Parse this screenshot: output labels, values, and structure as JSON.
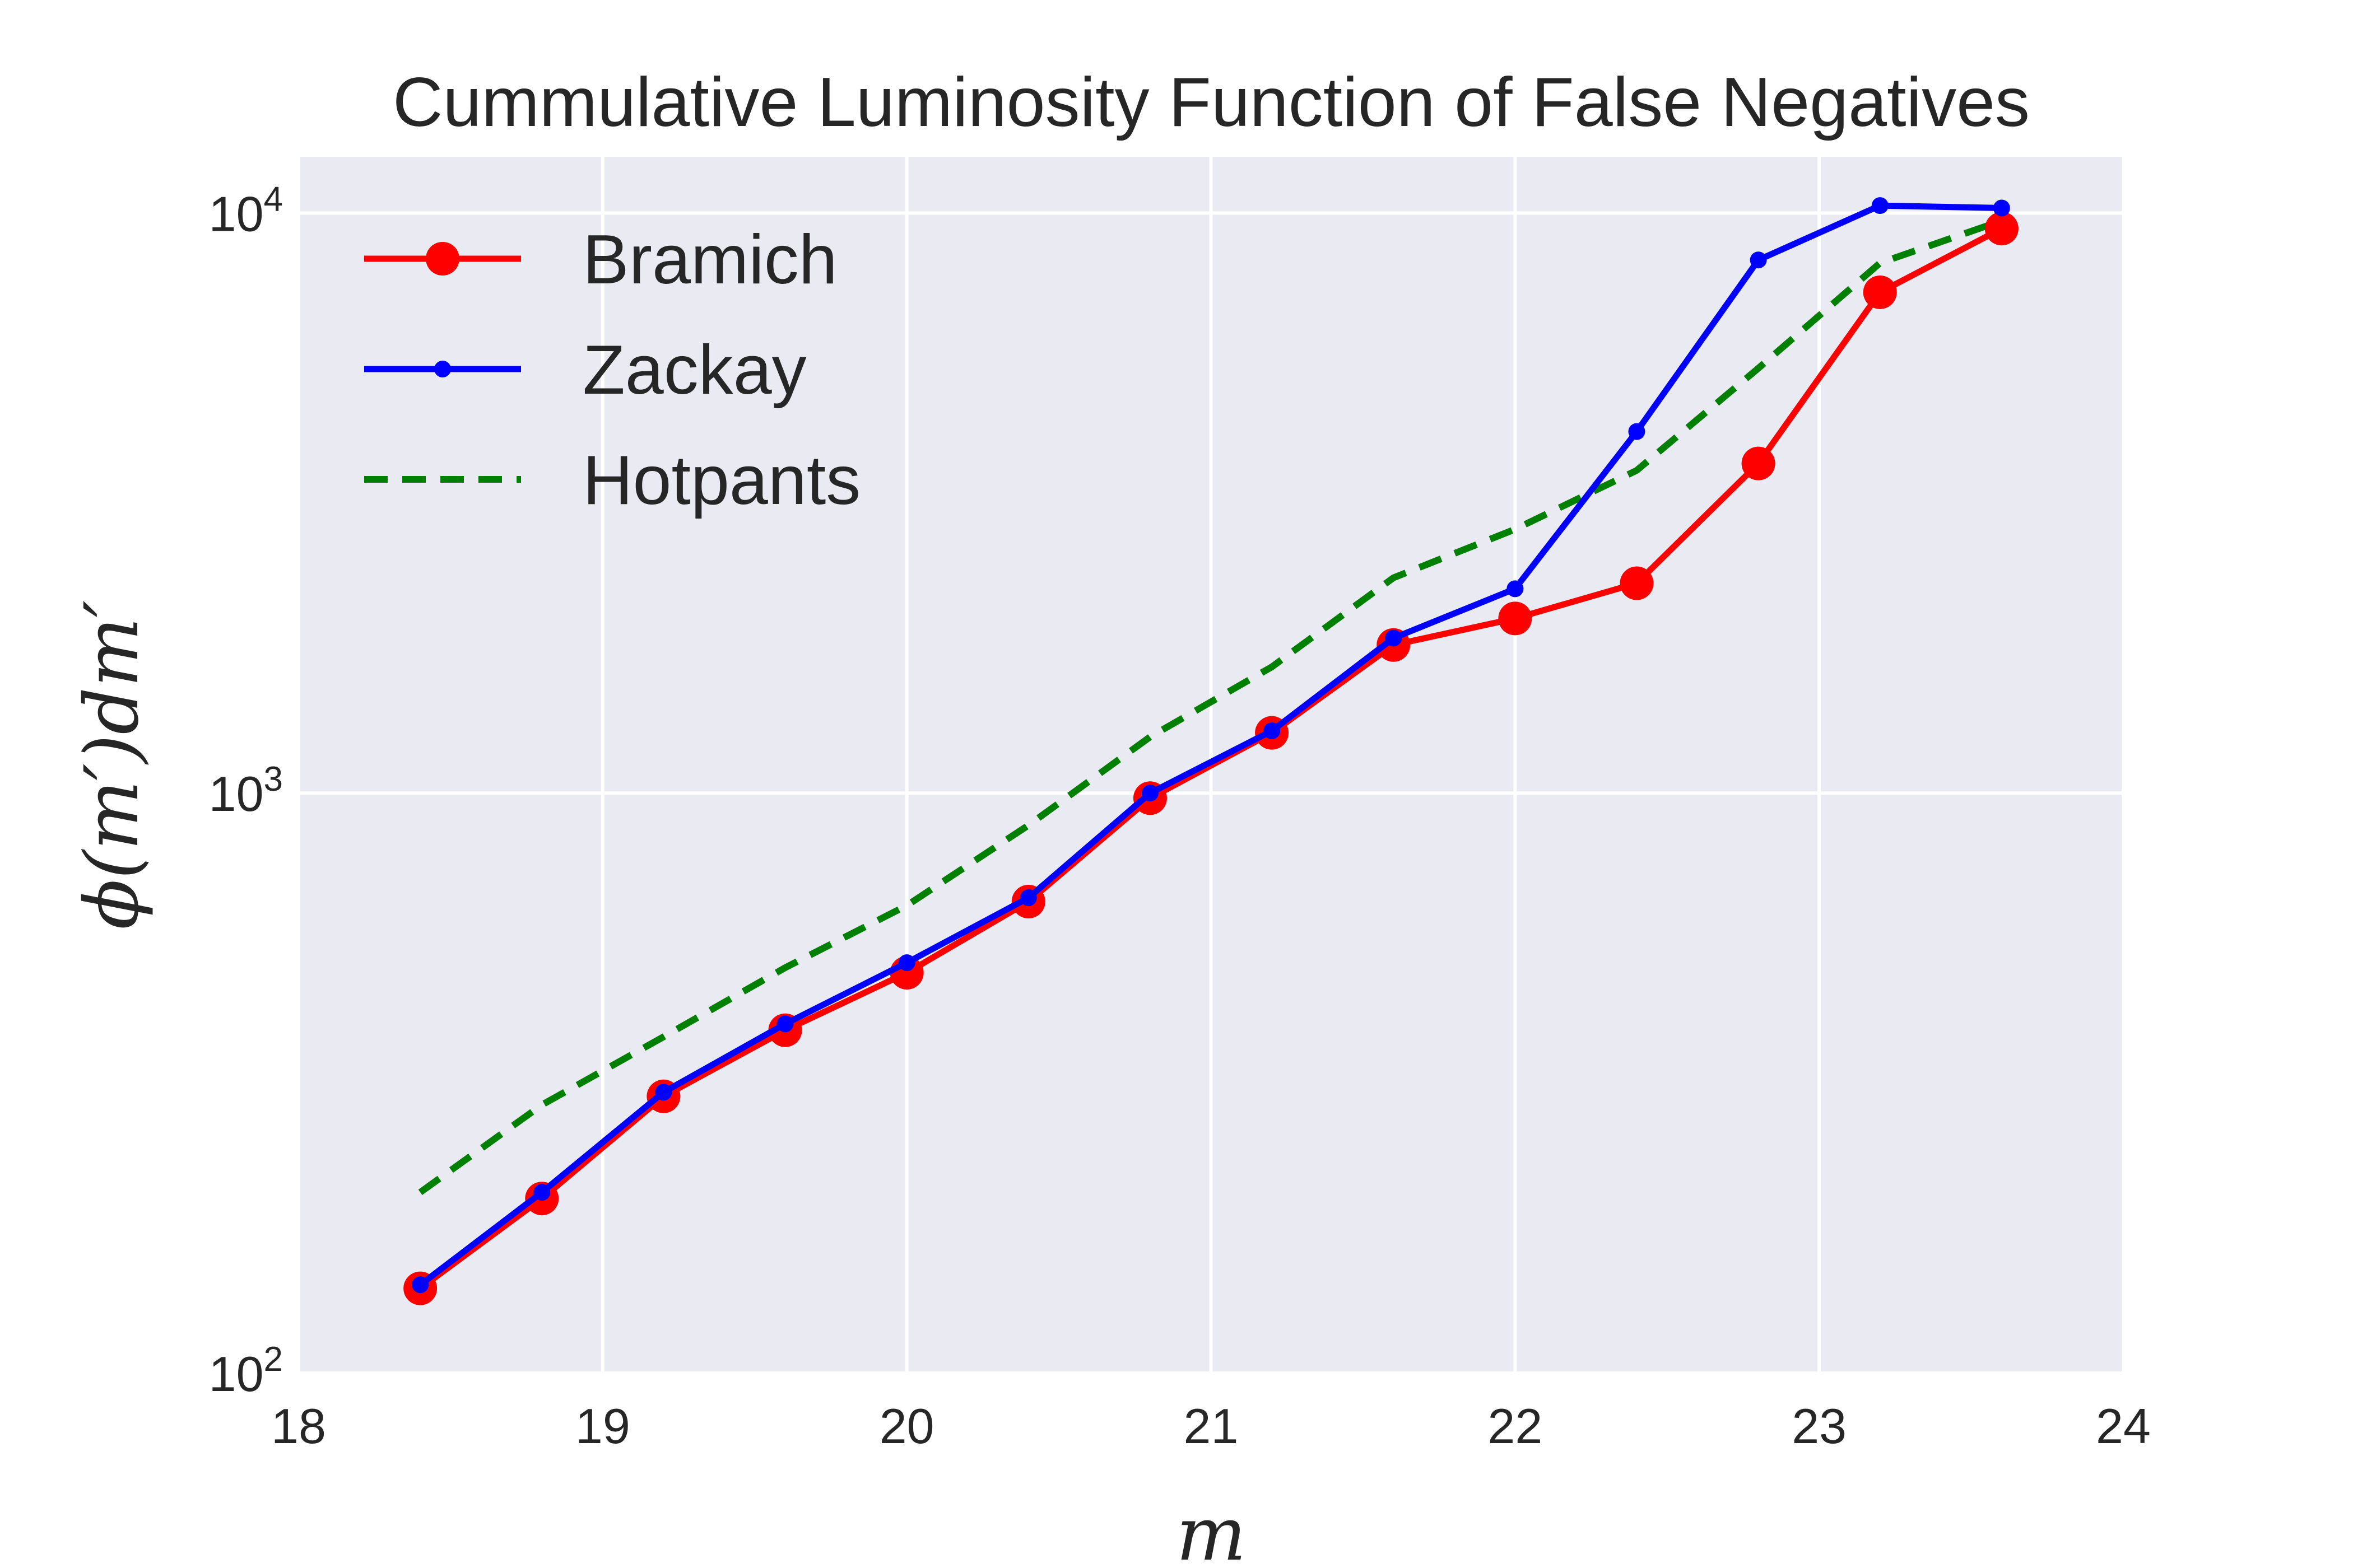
{
  "chart_data": {
    "type": "line",
    "title": "Cummulative Luminosity Function of False Negatives",
    "xlabel": "m",
    "ylabel": "ϕ(m′)dm′",
    "xlim": [
      18,
      24
    ],
    "ylim": [
      100,
      12500
    ],
    "yscale": "log",
    "xticks": [
      18,
      19,
      20,
      21,
      22,
      23,
      24
    ],
    "yticks": [
      {
        "value": 100,
        "base": "10",
        "exp": "2"
      },
      {
        "value": 1000,
        "base": "10",
        "exp": "3"
      },
      {
        "value": 10000,
        "base": "10",
        "exp": "4"
      }
    ],
    "grid": true,
    "legend_position": "top-left",
    "x": [
      18.4,
      18.8,
      19.2,
      19.6,
      20.0,
      20.4,
      20.8,
      21.2,
      21.6,
      22.0,
      22.4,
      22.8,
      23.2,
      23.6
    ],
    "series": [
      {
        "name": "Bramich",
        "color": "#ff0000",
        "style": "solid-large-markers",
        "values": [
          140,
          200,
          300,
          390,
          490,
          650,
          980,
          1270,
          1800,
          2000,
          2300,
          3700,
          7300,
          9400
        ]
      },
      {
        "name": "Zackay",
        "color": "#0000ff",
        "style": "solid-small-markers",
        "values": [
          142,
          205,
          305,
          400,
          510,
          660,
          1000,
          1280,
          1850,
          2250,
          4200,
          8300,
          10300,
          10200
        ]
      },
      {
        "name": "Hotpants",
        "color": "#008000",
        "style": "dashed",
        "values": [
          205,
          290,
          380,
          500,
          640,
          880,
          1250,
          1650,
          2350,
          2850,
          3600,
          5400,
          8200,
          9700
        ]
      }
    ]
  }
}
